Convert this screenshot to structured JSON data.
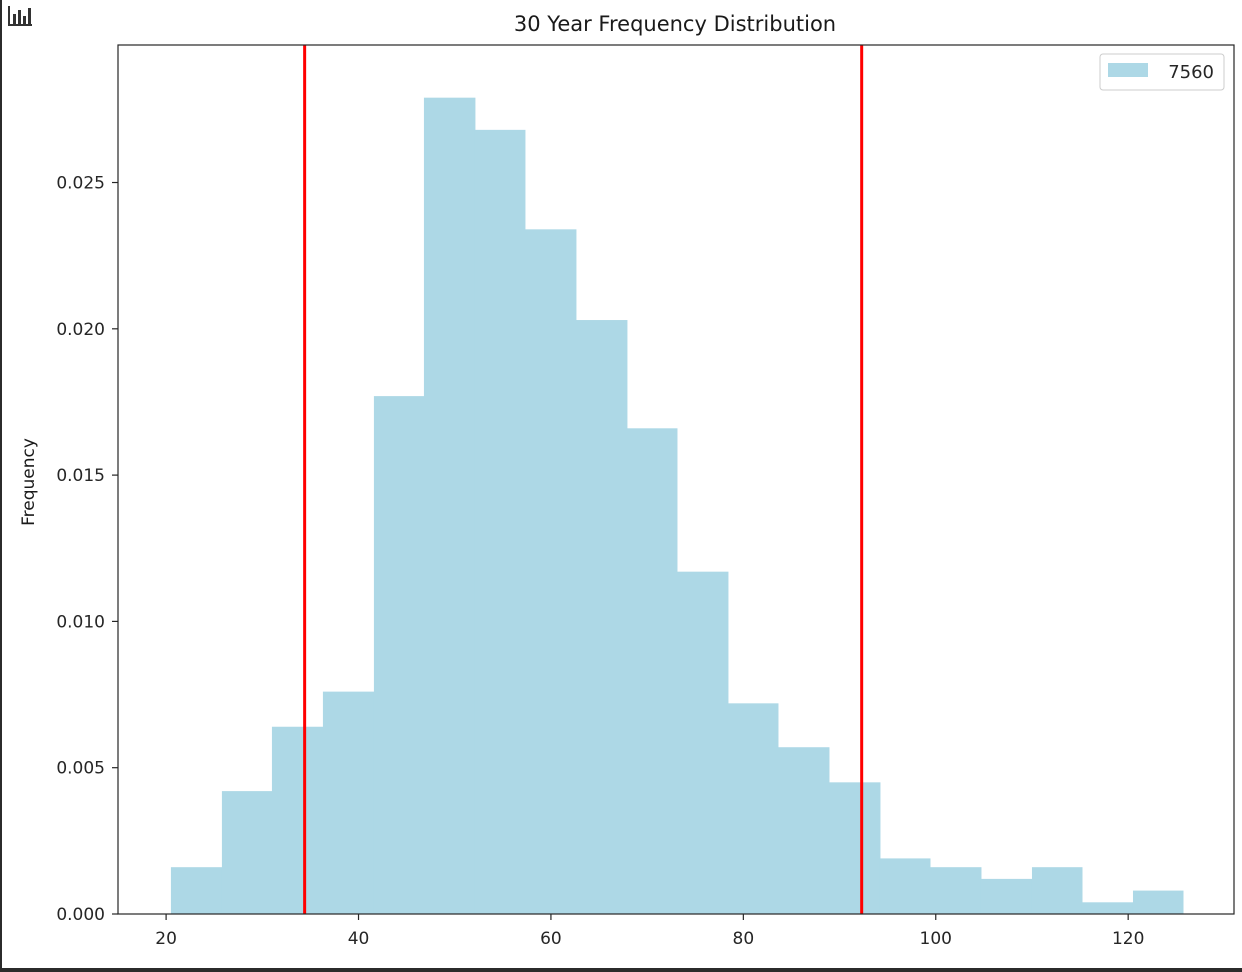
{
  "colors": {
    "bar": "#add8e6",
    "vline": "#ff0000",
    "axis": "#262626",
    "background": "#ffffff"
  },
  "corner_icon": "bar-chart-icon",
  "chart_data": {
    "type": "bar",
    "title": "30 Year Frequency Distribution",
    "xlabel": "",
    "ylabel": "Frequency",
    "xlim": [
      15,
      131
    ],
    "ylim": [
      0,
      0.0297
    ],
    "xticks": [
      20,
      40,
      60,
      80,
      100,
      120
    ],
    "yticks": [
      0.0,
      0.005,
      0.01,
      0.015,
      0.02,
      0.025
    ],
    "ytick_labels": [
      "0.000",
      "0.005",
      "0.010",
      "0.015",
      "0.020",
      "0.025"
    ],
    "legend_position": "top-right",
    "grid": false,
    "series": [
      {
        "name": "7560",
        "bin_edges": [
          20.5,
          25.8,
          31.0,
          36.3,
          41.6,
          46.8,
          52.1,
          57.3,
          62.6,
          67.9,
          73.1,
          78.4,
          83.6,
          88.9,
          94.2,
          99.4,
          104.7,
          110.0,
          115.2,
          120.5,
          125.7
        ],
        "values": [
          0.0016,
          0.0042,
          0.0064,
          0.0076,
          0.0177,
          0.0279,
          0.0268,
          0.0234,
          0.0203,
          0.0166,
          0.0117,
          0.0072,
          0.0057,
          0.0045,
          0.0019,
          0.0016,
          0.0012,
          0.0016,
          0.0004,
          0.0008
        ]
      }
    ],
    "vertical_lines": [
      34.4,
      92.3
    ]
  }
}
